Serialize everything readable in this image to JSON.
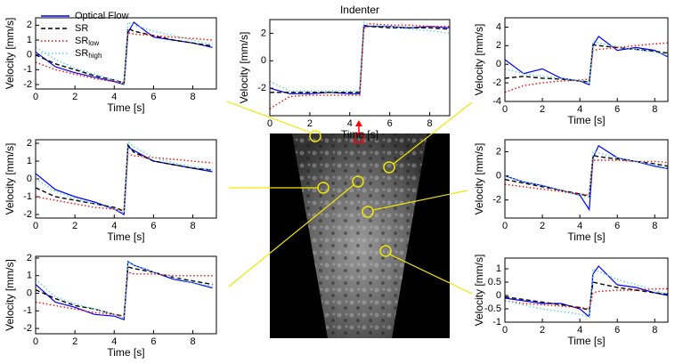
{
  "chart_data": [
    {
      "type": "line",
      "legend": "upper left",
      "xlabel": "Time [s]",
      "ylabel": "Velocity [mm/s]",
      "x": [
        0,
        1,
        2,
        3,
        4,
        4.5,
        4.7,
        5,
        6,
        7,
        8,
        9
      ],
      "xlim": [
        0,
        9.2
      ],
      "xticks": [
        0,
        2,
        4,
        6,
        8
      ],
      "ylim": [
        -2.3,
        2.5
      ],
      "yticks": [
        -2,
        -1,
        0,
        1,
        2
      ],
      "series": [
        {
          "name": "Optical Flow",
          "color": "#0000ff",
          "style": "solid",
          "values": [
            0.2,
            -0.8,
            -1.2,
            -1.5,
            -1.8,
            -2.0,
            1.5,
            2.2,
            1.2,
            1.0,
            0.8,
            0.5
          ]
        },
        {
          "name": "SR",
          "color": "#000000",
          "style": "dashed",
          "values": [
            0.0,
            -0.6,
            -1.0,
            -1.4,
            -1.7,
            -1.9,
            1.8,
            1.6,
            1.3,
            1.0,
            0.8,
            0.6
          ]
        },
        {
          "name": "SR",
          "name_sub": "low",
          "color": "#ff0000",
          "style": "dotted",
          "values": [
            -0.5,
            -1.0,
            -1.3,
            -1.6,
            -1.8,
            -1.9,
            1.5,
            1.4,
            1.3,
            1.2,
            1.1,
            1.0
          ]
        },
        {
          "name": "SR",
          "name_sub": "high",
          "color": "#55d6d6",
          "style": "dotted",
          "values": [
            0.5,
            -0.3,
            -0.9,
            -1.3,
            -1.7,
            -2.0,
            2.2,
            2.0,
            1.6,
            1.3,
            1.0,
            0.7
          ]
        }
      ]
    },
    {
      "type": "line",
      "title": "Indenter",
      "xlabel": "Time [s]",
      "ylabel": "Velocity [mm/s]",
      "x": [
        0,
        1,
        2,
        3,
        4,
        4.5,
        4.7,
        5,
        6,
        7,
        8,
        9
      ],
      "xlim": [
        0,
        9
      ],
      "xticks": [
        0,
        2,
        4,
        6,
        8
      ],
      "ylim": [
        -4,
        3
      ],
      "yticks": [
        -2,
        0,
        2
      ],
      "series": [
        {
          "color": "#0000ff",
          "style": "solid",
          "values": [
            -2.0,
            -2.4,
            -2.4,
            -2.3,
            -2.4,
            -2.4,
            2.6,
            2.5,
            2.5,
            2.4,
            2.5,
            2.4
          ]
        },
        {
          "color": "#000000",
          "style": "dashed",
          "values": [
            -2.3,
            -2.3,
            -2.3,
            -2.3,
            -2.3,
            -2.3,
            2.5,
            2.5,
            2.4,
            2.4,
            2.4,
            2.3
          ]
        },
        {
          "color": "#ff0000",
          "style": "dotted",
          "values": [
            -3.5,
            -2.6,
            -2.5,
            -2.5,
            -2.5,
            -2.5,
            2.3,
            2.7,
            2.6,
            2.6,
            2.5,
            2.5
          ]
        },
        {
          "color": "#55d6d6",
          "style": "dotted",
          "values": [
            -1.5,
            -2.2,
            -2.2,
            -2.2,
            -2.2,
            -2.2,
            2.8,
            2.6,
            2.5,
            2.3,
            2.2,
            2.0
          ]
        }
      ]
    },
    {
      "type": "line",
      "xlabel": "Time [s]",
      "ylabel": "Velocity [mm/s]",
      "x": [
        0,
        1,
        2,
        3,
        4,
        4.5,
        4.7,
        5,
        6,
        7,
        8,
        9
      ],
      "xlim": [
        0,
        9.2
      ],
      "xticks": [
        0,
        2,
        4,
        6,
        8
      ],
      "ylim": [
        -2.2,
        2.2
      ],
      "yticks": [
        -2,
        -1,
        0,
        1,
        2
      ],
      "series": [
        {
          "color": "#0000ff",
          "style": "solid",
          "values": [
            0.3,
            -0.6,
            -1.0,
            -1.3,
            -1.7,
            -2.0,
            1.8,
            1.6,
            1.0,
            0.8,
            0.6,
            0.4
          ]
        },
        {
          "color": "#000000",
          "style": "dashed",
          "values": [
            -0.5,
            -1.0,
            -1.2,
            -1.4,
            -1.6,
            -1.8,
            1.9,
            1.5,
            1.0,
            0.8,
            0.6,
            0.5
          ]
        },
        {
          "color": "#ff0000",
          "style": "dotted",
          "values": [
            -1.0,
            -1.2,
            -1.4,
            -1.6,
            -1.7,
            -1.8,
            1.4,
            1.3,
            1.2,
            1.1,
            1.0,
            0.9
          ]
        },
        {
          "color": "#55d6d6",
          "style": "dotted",
          "values": [
            0.0,
            -0.7,
            -1.1,
            -1.4,
            -1.7,
            -1.9,
            2.1,
            1.8,
            1.2,
            0.9,
            0.7,
            0.5
          ]
        }
      ]
    },
    {
      "type": "line",
      "xlabel": "Time [s]",
      "ylabel": "Velocity [mm/s]",
      "x": [
        0,
        1,
        2,
        3,
        4,
        4.5,
        4.7,
        5,
        6,
        7,
        8,
        9
      ],
      "xlim": [
        0,
        9.2
      ],
      "xticks": [
        0,
        2,
        4,
        6,
        8
      ],
      "ylim": [
        -2.3,
        2.1
      ],
      "yticks": [
        -2,
        -1,
        0,
        1,
        2
      ],
      "series": [
        {
          "color": "#0000ff",
          "style": "solid",
          "values": [
            0.5,
            -0.5,
            -0.8,
            -1.2,
            -1.3,
            -1.5,
            1.8,
            1.6,
            1.2,
            0.8,
            0.6,
            0.3
          ]
        },
        {
          "color": "#000000",
          "style": "dashed",
          "values": [
            0.2,
            -0.3,
            -0.7,
            -0.9,
            -1.2,
            -1.3,
            1.5,
            1.4,
            1.2,
            0.9,
            0.7,
            0.5
          ]
        },
        {
          "color": "#ff0000",
          "style": "dotted",
          "values": [
            -0.5,
            -0.7,
            -0.9,
            -1.1,
            -1.2,
            -1.3,
            1.2,
            1.1,
            1.1,
            1.0,
            1.0,
            1.0
          ]
        },
        {
          "color": "#55d6d6",
          "style": "dotted",
          "values": [
            0.8,
            -0.2,
            -0.6,
            -0.9,
            -1.2,
            -1.4,
            1.8,
            1.6,
            1.2,
            0.9,
            0.6,
            0.4
          ]
        }
      ]
    },
    {
      "type": "line",
      "xlabel": "Time [s]",
      "ylabel": "Velocity [mm/s]",
      "x": [
        0,
        1,
        2,
        3,
        4,
        4.5,
        4.7,
        5,
        6,
        7,
        8,
        8.7
      ],
      "xlim": [
        0,
        8.7
      ],
      "xticks": [
        0,
        2,
        4,
        6,
        8
      ],
      "ylim": [
        -4,
        5
      ],
      "yticks": [
        -4,
        -2,
        0,
        2,
        4
      ],
      "series": [
        {
          "color": "#0000ff",
          "style": "solid",
          "values": [
            0.5,
            -1.0,
            -0.5,
            -1.5,
            -1.8,
            -2.2,
            2.0,
            3.0,
            1.5,
            1.8,
            1.5,
            0.8
          ]
        },
        {
          "color": "#000000",
          "style": "dashed",
          "values": [
            -1.5,
            -1.3,
            -1.5,
            -1.6,
            -1.8,
            -1.9,
            2.1,
            2.0,
            1.8,
            1.6,
            1.4,
            1.2
          ]
        },
        {
          "color": "#ff0000",
          "style": "dotted",
          "values": [
            -3.0,
            -2.3,
            -2.0,
            -1.8,
            -1.7,
            -1.6,
            1.5,
            1.6,
            1.8,
            2.0,
            2.2,
            2.3
          ]
        },
        {
          "color": "#55d6d6",
          "style": "dotted",
          "values": [
            -0.5,
            -1.0,
            -1.3,
            -1.5,
            -1.8,
            -2.0,
            2.5,
            2.3,
            1.9,
            1.6,
            1.3,
            1.0
          ]
        }
      ]
    },
    {
      "type": "line",
      "xlabel": "Time [s]",
      "ylabel": "Velocity [mm/s]",
      "x": [
        0,
        1,
        2,
        3,
        4,
        4.5,
        4.7,
        5,
        6,
        7,
        8,
        8.7
      ],
      "xlim": [
        0,
        8.7
      ],
      "xticks": [
        0,
        2,
        4,
        6,
        8
      ],
      "ylim": [
        -3.5,
        3
      ],
      "yticks": [
        -2,
        0,
        2
      ],
      "series": [
        {
          "color": "#0000ff",
          "style": "solid",
          "values": [
            0.0,
            -0.5,
            -0.8,
            -1.2,
            -1.6,
            -2.8,
            1.5,
            2.5,
            1.5,
            1.2,
            0.8,
            0.6
          ]
        },
        {
          "color": "#000000",
          "style": "dashed",
          "values": [
            -0.3,
            -0.6,
            -0.9,
            -1.2,
            -1.5,
            -1.7,
            1.7,
            1.6,
            1.4,
            1.2,
            1.0,
            0.8
          ]
        },
        {
          "color": "#ff0000",
          "style": "dotted",
          "values": [
            -0.7,
            -0.9,
            -1.1,
            -1.3,
            -1.5,
            -1.6,
            1.3,
            1.3,
            1.3,
            1.2,
            1.2,
            1.1
          ]
        },
        {
          "color": "#55d6d6",
          "style": "dotted",
          "values": [
            0.0,
            -0.5,
            -0.8,
            -1.2,
            -1.6,
            -1.8,
            2.0,
            1.9,
            1.5,
            1.2,
            0.9,
            0.6
          ]
        }
      ]
    },
    {
      "type": "line",
      "xlabel": "Time [s]",
      "ylabel": "Velocity [mm/s]",
      "x": [
        0,
        1,
        2,
        3,
        4,
        4.5,
        4.7,
        5,
        6,
        7,
        8,
        8.7
      ],
      "xlim": [
        0,
        8.7
      ],
      "xticks": [
        0,
        2,
        4,
        6,
        8
      ],
      "ylim": [
        -1,
        1.4
      ],
      "yticks": [
        -1,
        -0.5,
        0,
        0.5,
        1
      ],
      "series": [
        {
          "color": "#0000ff",
          "style": "solid",
          "values": [
            -0.1,
            -0.2,
            -0.3,
            -0.3,
            -0.5,
            -0.8,
            0.8,
            1.1,
            0.4,
            0.3,
            0.1,
            0.0
          ]
        },
        {
          "color": "#000000",
          "style": "dashed",
          "values": [
            -0.05,
            -0.15,
            -0.25,
            -0.35,
            -0.45,
            -0.55,
            0.5,
            0.45,
            0.3,
            0.2,
            0.1,
            0.05
          ]
        },
        {
          "color": "#ff0000",
          "style": "dotted",
          "values": [
            -0.2,
            -0.3,
            -0.35,
            -0.4,
            -0.45,
            -0.5,
            0.1,
            0.15,
            0.2,
            0.2,
            0.25,
            0.25
          ]
        },
        {
          "color": "#55d6d6",
          "style": "dotted",
          "values": [
            -0.2,
            -0.35,
            -0.5,
            -0.6,
            -0.7,
            -0.8,
            1.0,
            0.9,
            0.6,
            0.4,
            0.2,
            0.05
          ]
        }
      ]
    }
  ]
}
